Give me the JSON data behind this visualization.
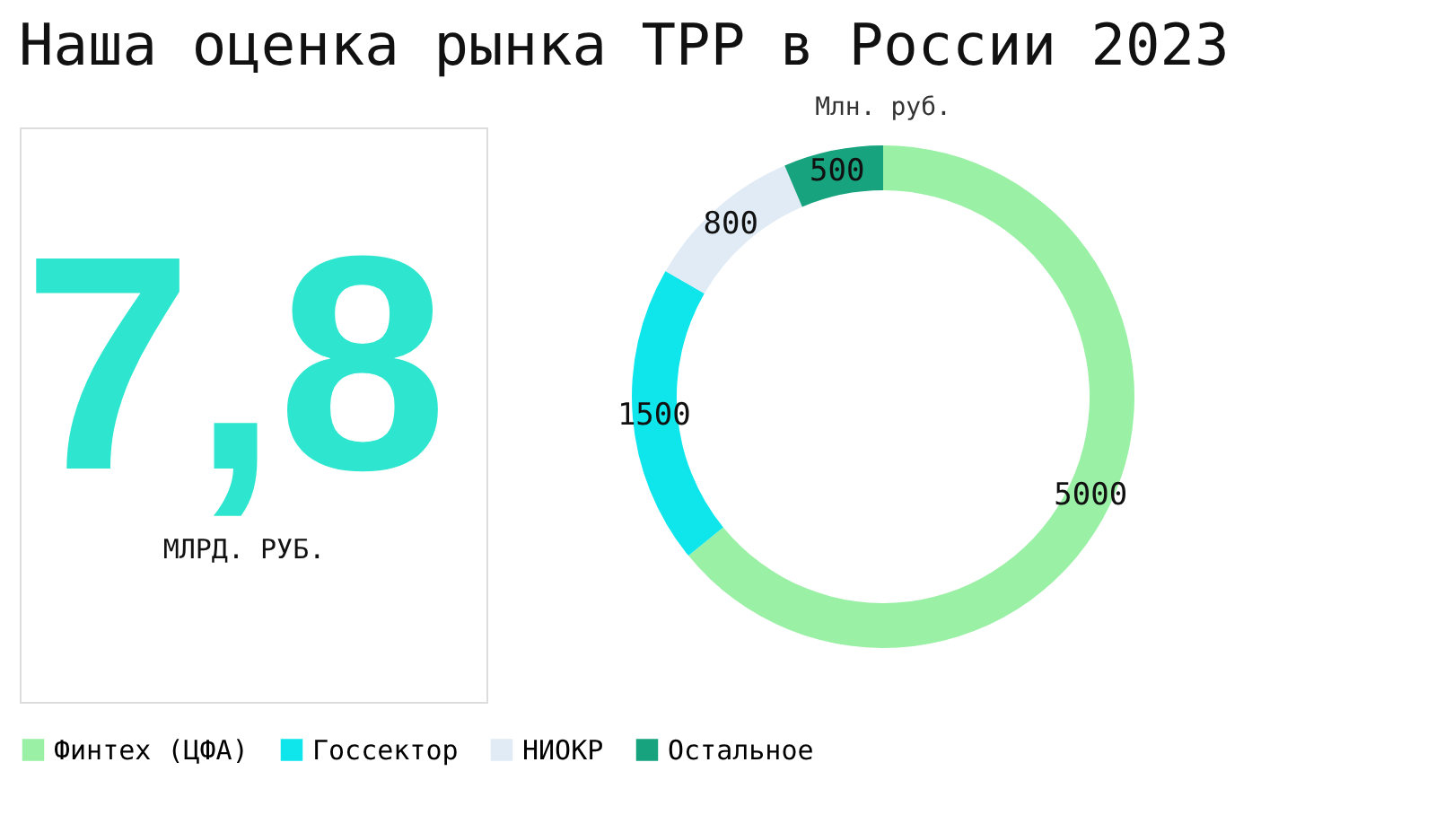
{
  "chart_data": [
    {
      "type": "other",
      "title": "Наша оценка рынка ТРР в России 2023",
      "annotations": [
        "7,8",
        "МЛРД. РУБ."
      ]
    },
    {
      "type": "donut",
      "title": "Млн. руб.",
      "categories": [
        "Финтех (ЦФА)",
        "Госсектор",
        "НИОКР",
        "Остальное"
      ],
      "values": [
        5000,
        1500,
        800,
        500
      ],
      "colors": [
        "#9af0a5",
        "#0ee6ec",
        "#e0ebf5",
        "#16a37e"
      ],
      "data_labels": true,
      "legend": "bottom"
    }
  ]
}
